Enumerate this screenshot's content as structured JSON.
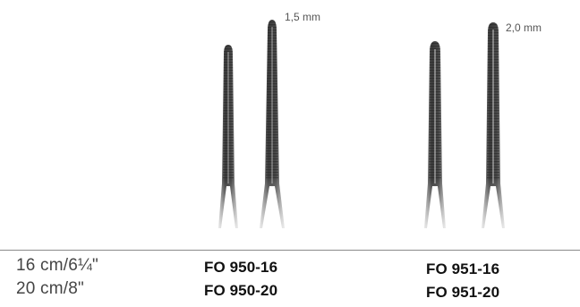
{
  "sizes": [
    "16 cm/6¼\"",
    "20 cm/8\""
  ],
  "groups": [
    {
      "tip_width": "1,5 mm",
      "codes": [
        "FO 950-16",
        "FO 950-20"
      ]
    },
    {
      "tip_width": "2,0 mm",
      "codes": [
        "FO 951-16",
        "FO 951-20"
      ]
    }
  ],
  "colors": {
    "instrument_dark": "#3c3c3c",
    "instrument_light": "#b8b8b8",
    "rule": "#8a8a8a"
  }
}
